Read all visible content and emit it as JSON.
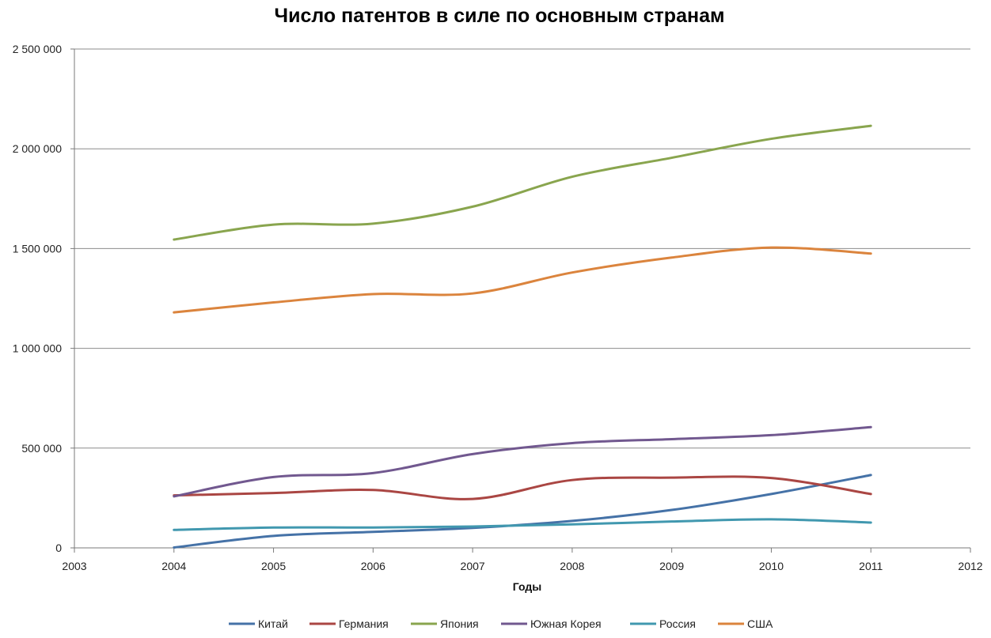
{
  "title": "Число патентов в силе по основным странам",
  "chart_data": {
    "type": "line",
    "title": "Число патентов в силе по основным странам",
    "xlabel": "Годы",
    "ylabel": "",
    "xlim": [
      2003,
      2012
    ],
    "ylim": [
      0,
      2500000
    ],
    "x_ticks": [
      2003,
      2004,
      2005,
      2006,
      2007,
      2008,
      2009,
      2010,
      2011,
      2012
    ],
    "y_ticks": [
      0,
      500000,
      1000000,
      1500000,
      2000000,
      2500000
    ],
    "x_tick_labels": [
      "2003",
      "2004",
      "2005",
      "2006",
      "2007",
      "2008",
      "2009",
      "2010",
      "2011",
      "2012"
    ],
    "y_tick_labels": [
      "0",
      "500 000",
      "1 000 000",
      "1 500 000",
      "2 000 000",
      "2 500 000"
    ],
    "grid": "horizontal",
    "legend_position": "bottom",
    "smooth": true,
    "x": [
      2004,
      2005,
      2006,
      2007,
      2008,
      2009,
      2010,
      2011
    ],
    "series": [
      {
        "name": "Китай",
        "color": "#4572a7",
        "values": [
          2000,
          60000,
          80000,
          100000,
          135000,
          190000,
          270000,
          365000
        ]
      },
      {
        "name": "Германия",
        "color": "#aa4643",
        "values": [
          263000,
          275000,
          290000,
          245000,
          340000,
          352000,
          350000,
          270000
        ]
      },
      {
        "name": "Япония",
        "color": "#89a54e",
        "values": [
          1545000,
          1620000,
          1625000,
          1710000,
          1860000,
          1955000,
          2050000,
          2115000
        ]
      },
      {
        "name": "Южная Корея",
        "color": "#71588f",
        "values": [
          258000,
          355000,
          375000,
          470000,
          525000,
          545000,
          565000,
          605000
        ]
      },
      {
        "name": "Россия",
        "color": "#4198af",
        "values": [
          90000,
          102000,
          102000,
          107000,
          118000,
          132000,
          143000,
          127000
        ]
      },
      {
        "name": "США",
        "color": "#db843d",
        "values": [
          1180000,
          1230000,
          1272000,
          1275000,
          1380000,
          1455000,
          1505000,
          1475000
        ]
      }
    ]
  }
}
